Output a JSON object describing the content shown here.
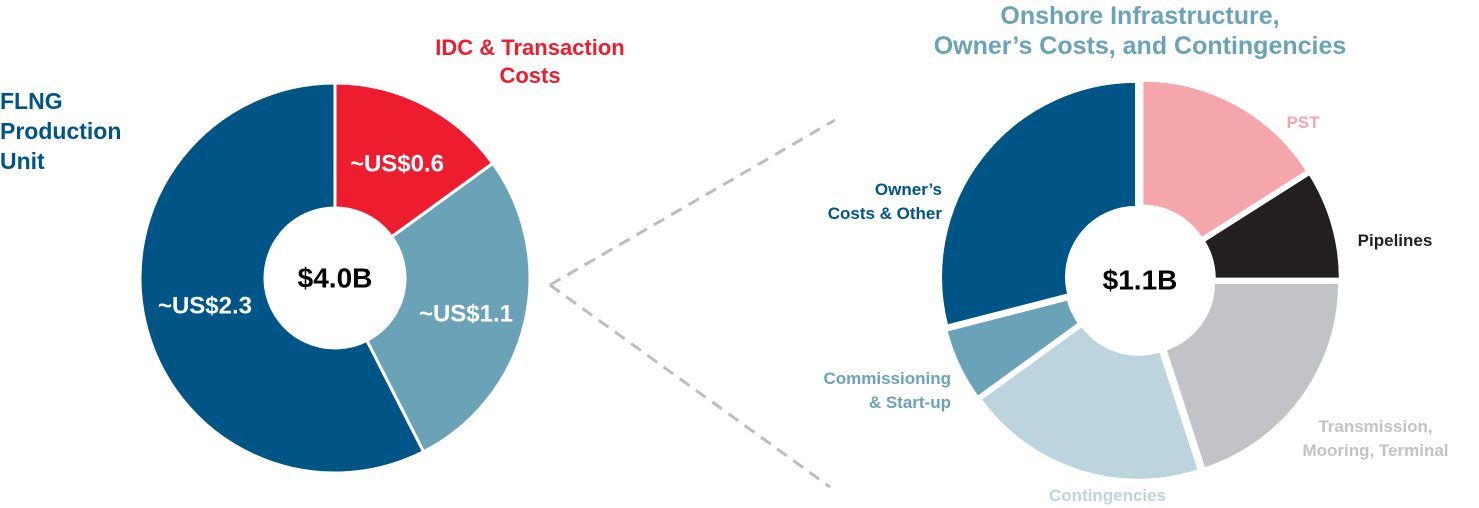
{
  "chart_data": [
    {
      "type": "donut",
      "center_label": "$4.0B",
      "categories": [
        "IDC & Transaction\nCosts",
        null,
        "FLNG\nProduction\nUnit"
      ],
      "values": [
        0.6,
        1.1,
        2.3
      ],
      "value_labels": [
        "~US$0.6",
        "~US$1.1",
        "~US$2.3"
      ],
      "colors": [
        "#ed1c2e",
        "#6aa3b8",
        "#005587"
      ]
    },
    {
      "type": "donut",
      "title": [
        "Onshore Infrastructure,",
        "Owner’s Costs, and Contingencies"
      ],
      "center_label": "$1.1B",
      "categories": [
        "PST",
        "Pipelines",
        "Transmission,\nMooring, Terminal",
        "Contingencies",
        "Commissioning\n& Start-up",
        "Owner’s\nCosts & Other"
      ],
      "values": [
        16,
        9,
        20,
        20,
        6,
        29
      ],
      "colors": [
        "#f4a6ab",
        "#231f20",
        "#c2c3c6",
        "#bcd4de",
        "#6aa3b8",
        "#005587"
      ],
      "exploded": true
    }
  ]
}
